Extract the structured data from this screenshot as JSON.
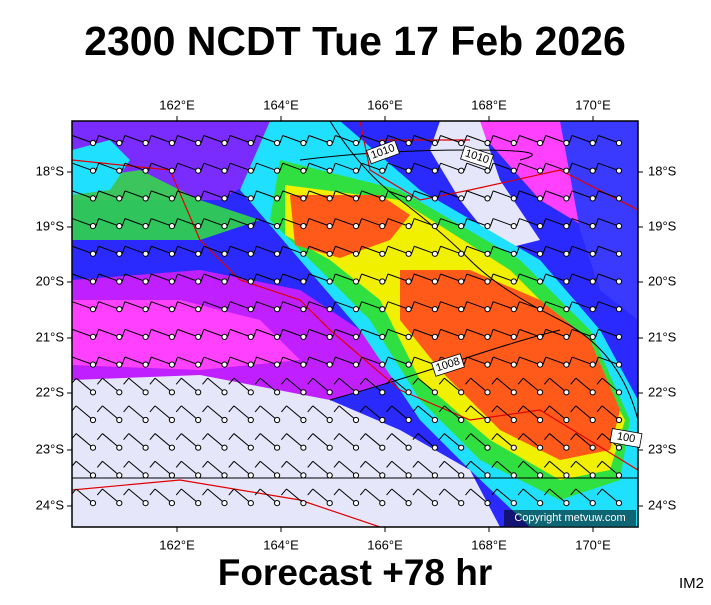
{
  "title": "2300 NCDT Tue 17 Feb 2026",
  "map": {
    "lon_labels": [
      "162°E",
      "164°E",
      "166°E",
      "168°E",
      "170°E"
    ],
    "lat_labels": [
      "18°S",
      "19°S",
      "20°S",
      "21°S",
      "22°S",
      "23°S",
      "24°S"
    ],
    "isobar_labels": [
      "1010",
      "1010",
      "1008",
      "100"
    ],
    "copyright": "Copyright metvuw.com"
  },
  "footer": {
    "forecast": "Forecast +78 hr",
    "image_id": "IM2"
  }
}
